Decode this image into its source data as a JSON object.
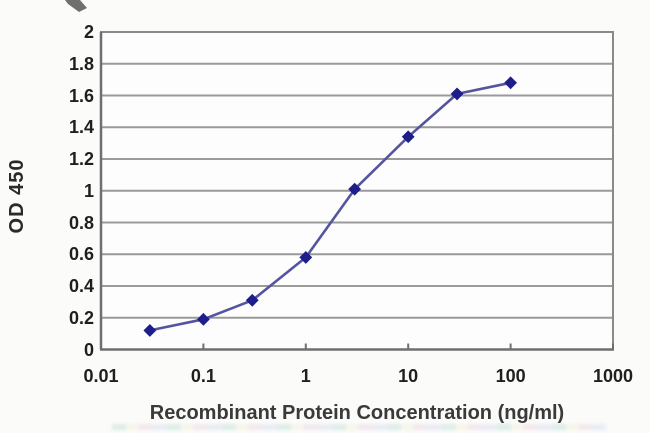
{
  "page": {
    "background": "#fbfbfa",
    "description_labels": {}
  },
  "chart_data": {
    "type": "line",
    "title": "",
    "xlabel": "Recombinant Protein Concentration (ng/ml)",
    "ylabel": "OD 450",
    "x_scale": "log",
    "xlim": [
      0.01,
      1000
    ],
    "ylim": [
      0,
      2
    ],
    "x": [
      0.03,
      0.1,
      0.3,
      1,
      3,
      10,
      30,
      100
    ],
    "y": [
      0.12,
      0.19,
      0.31,
      0.58,
      1.01,
      1.34,
      1.61,
      1.68
    ],
    "x_tick_labels": [
      "0.01",
      "0.1",
      "1",
      "10",
      "100",
      "1000"
    ],
    "y_tick_labels": [
      "2",
      "1.8",
      "1.6",
      "1.4",
      "1.2",
      "1",
      "0.8",
      "0.6",
      "0.4",
      "0.2",
      "0"
    ],
    "grid": "horizontal-only",
    "legend": "none",
    "marker": "diamond",
    "colors": {
      "line": "#55559f",
      "marker": "#1e1e8a",
      "gridline": "#9a9a9a",
      "axis": "#6f6f6f",
      "plot_border": "#8a8a8a",
      "plot_fill": "#fdfdfd",
      "tick_text": "#1f1f1f",
      "title_text": "#3a3a3a"
    }
  }
}
